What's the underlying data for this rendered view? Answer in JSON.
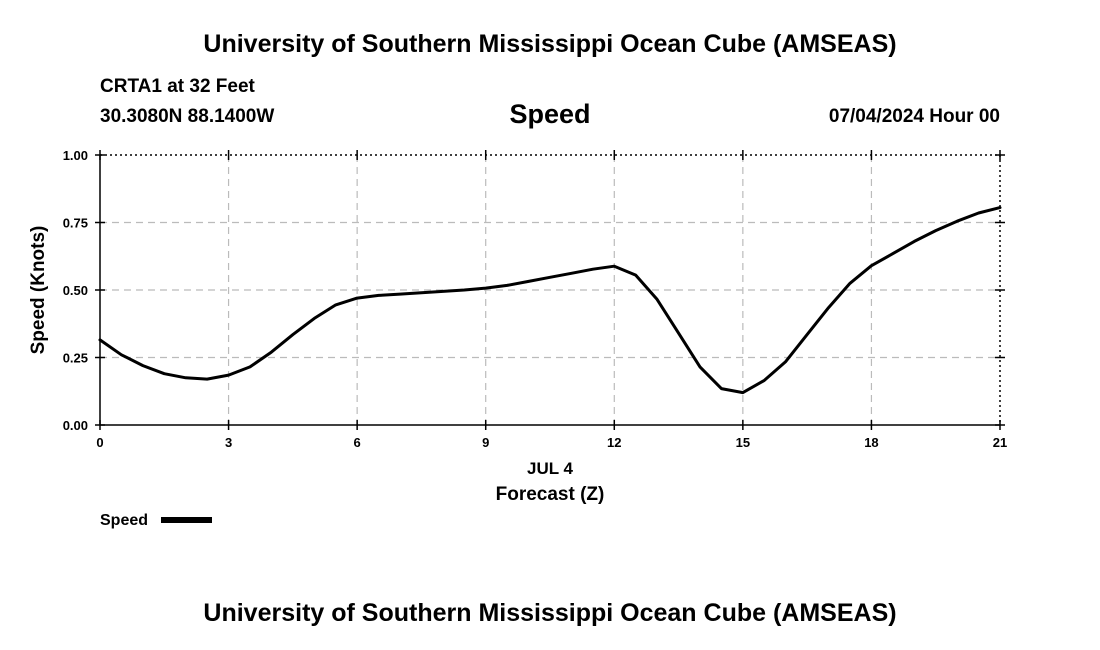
{
  "header": {
    "title": "University of Southern Mississippi Ocean Cube (AMSEAS)",
    "station": "CRTA1 at 32 Feet",
    "coords": "30.3080N  88.1400W",
    "variable": "Speed",
    "date": "07/04/2024 Hour 00"
  },
  "footer": {
    "title": "University of Southern Mississippi Ocean Cube (AMSEAS)"
  },
  "chart_data": {
    "type": "line",
    "xlabel": "Forecast (Z)",
    "date_label": "JUL 4",
    "ylabel": "Speed (Knots)",
    "xlim": [
      0,
      21
    ],
    "ylim": [
      0,
      1
    ],
    "xticks": [
      0,
      3,
      6,
      9,
      12,
      15,
      18,
      21
    ],
    "yticks": [
      "0.00",
      "0.25",
      "0.50",
      "0.75",
      "1.00"
    ],
    "grid": true,
    "legend": "bottom-left",
    "series": [
      {
        "name": "Speed",
        "color": "#000000",
        "x": [
          0,
          0.5,
          1,
          1.5,
          2,
          2.5,
          3,
          3.5,
          4,
          4.5,
          5,
          5.5,
          6,
          6.5,
          7,
          7.5,
          8,
          8.5,
          9,
          9.5,
          10,
          10.5,
          11,
          11.5,
          12,
          12.5,
          13,
          13.5,
          14,
          14.5,
          15,
          15.5,
          16,
          16.5,
          17,
          17.5,
          18,
          18.5,
          19,
          19.5,
          20,
          20.5,
          21
        ],
        "y": [
          0.315,
          0.26,
          0.22,
          0.19,
          0.175,
          0.17,
          0.185,
          0.215,
          0.27,
          0.335,
          0.395,
          0.445,
          0.47,
          0.48,
          0.485,
          0.49,
          0.495,
          0.5,
          0.507,
          0.517,
          0.532,
          0.547,
          0.562,
          0.577,
          0.588,
          0.555,
          0.465,
          0.34,
          0.215,
          0.135,
          0.12,
          0.165,
          0.235,
          0.335,
          0.435,
          0.525,
          0.59,
          0.635,
          0.68,
          0.72,
          0.755,
          0.785,
          0.805
        ]
      }
    ]
  }
}
